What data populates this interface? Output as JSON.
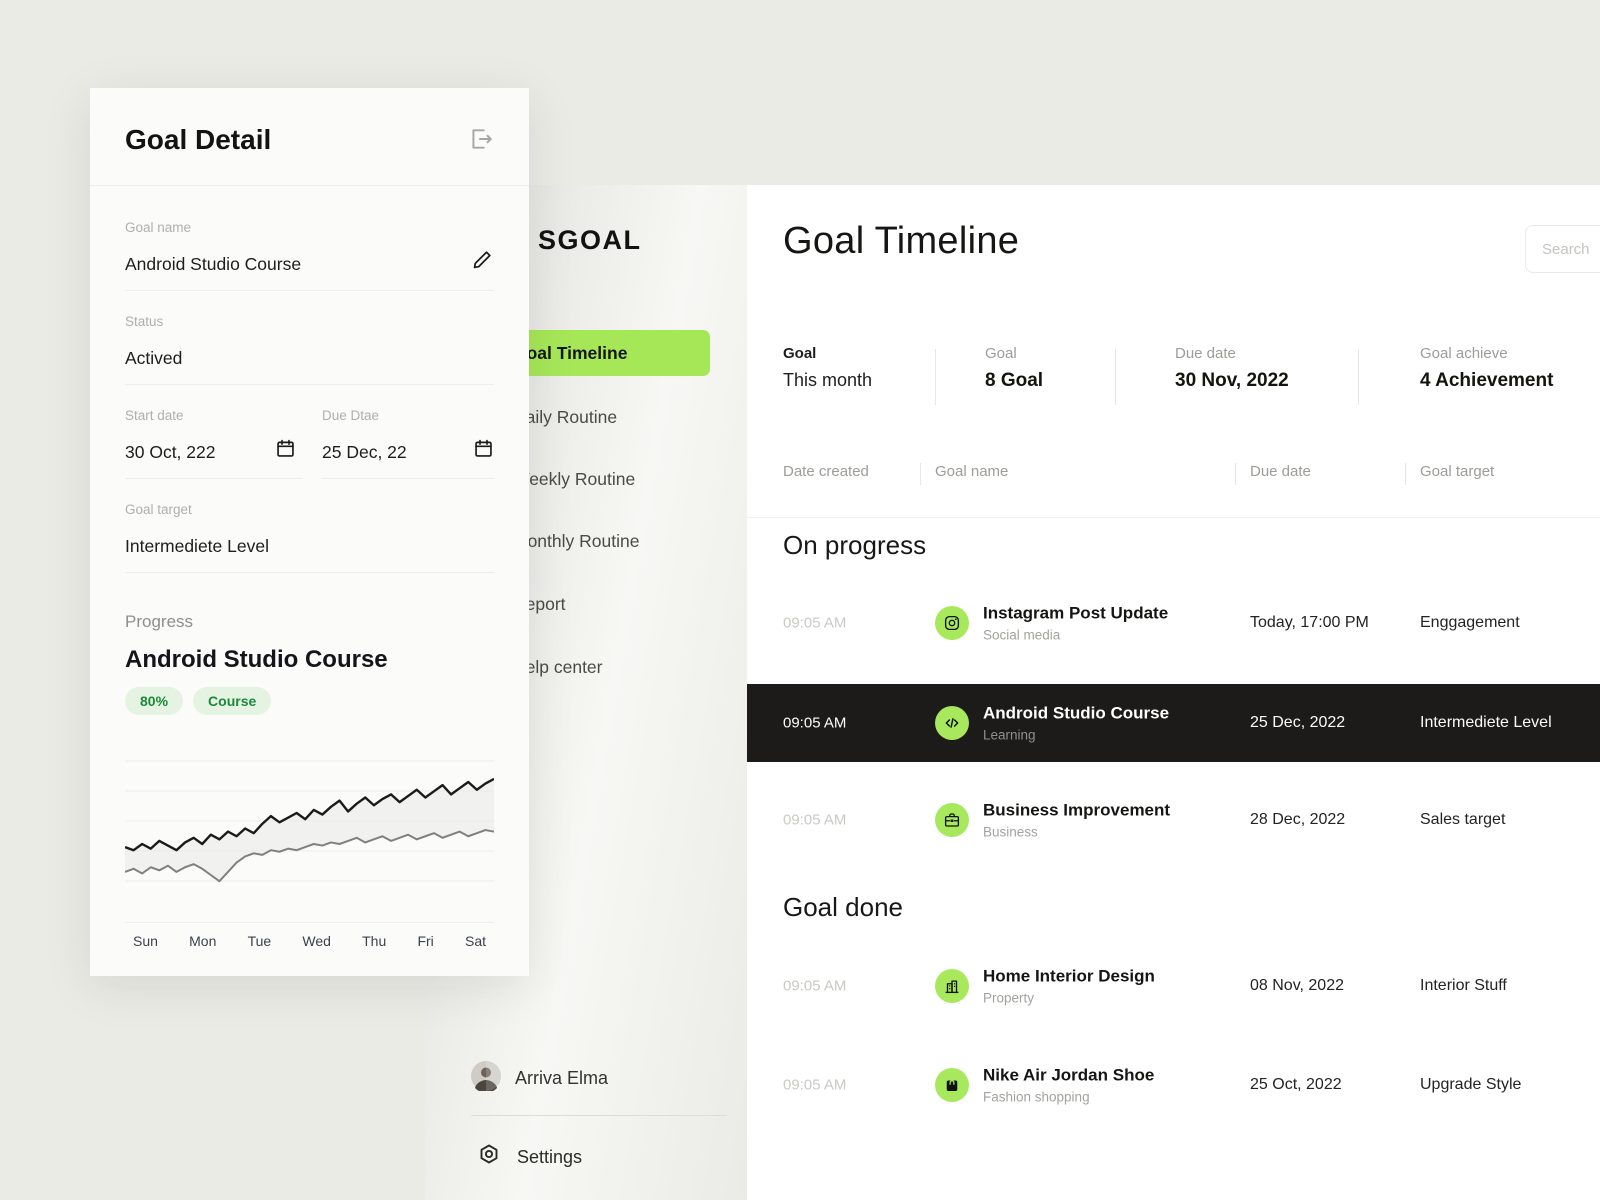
{
  "colors": {
    "accent_green": "#A6E758",
    "badge_bg": "#E4F3E2",
    "badge_text": "#1B8A38",
    "dark_row_bg": "#1C1B19",
    "page_bg": "#EAEBE5"
  },
  "goal_detail": {
    "title": "Goal Detail",
    "goal_name_label": "Goal name",
    "goal_name_value": "Android Studio Course",
    "status_label": "Status",
    "status_value": "Actived",
    "start_date_label": "Start date",
    "start_date_value": "30 Oct, 222",
    "due_date_label": "Due Dtae",
    "due_date_value": "25 Dec, 22",
    "goal_target_label": "Goal target",
    "goal_target_value": "Intermediete Level",
    "progress_label": "Progress",
    "progress_title": "Android Studio Course",
    "badge_percent": "80%",
    "badge_category": "Course"
  },
  "chart_data": {
    "type": "line",
    "x_labels": [
      "Sun",
      "Mon",
      "Tue",
      "Wed",
      "Thu",
      "Fri",
      "Sat"
    ],
    "series": [
      {
        "name": "progress-top",
        "color": "#1B1B19",
        "width": 2.4,
        "values": [
          38,
          36,
          40,
          37,
          42,
          39,
          36,
          41,
          44,
          40,
          46,
          43,
          48,
          45,
          50,
          47,
          53,
          58,
          54,
          57,
          60,
          56,
          62,
          59,
          64,
          68,
          61,
          66,
          70,
          65,
          69,
          72,
          67,
          71,
          75,
          70,
          74,
          78,
          72,
          76,
          80,
          75,
          79,
          82
        ]
      },
      {
        "name": "progress-baseline",
        "color": "#80807C",
        "width": 2,
        "values": [
          22,
          24,
          21,
          25,
          23,
          26,
          22,
          25,
          27,
          24,
          20,
          16,
          22,
          28,
          32,
          34,
          33,
          36,
          35,
          37,
          36,
          38,
          40,
          39,
          41,
          40,
          42,
          44,
          41,
          43,
          45,
          42,
          44,
          46,
          43,
          45,
          47,
          44,
          46,
          48,
          45,
          47,
          49,
          48
        ]
      }
    ],
    "ylim": [
      0,
      100
    ],
    "grid": true,
    "legend": "none",
    "fill_between": "#EBEBE8"
  },
  "sidebar": {
    "logo": "SGOAL",
    "items": [
      {
        "label": "Goal Timeline",
        "active": true
      },
      {
        "label": "Daily Routine",
        "active": false
      },
      {
        "label": "Weekly Routine",
        "active": false
      },
      {
        "label": "Monthly Routine",
        "active": false
      },
      {
        "label": "Report",
        "active": false
      },
      {
        "label": "Help center",
        "active": false
      }
    ],
    "user_name": "Arriva Elma",
    "settings_label": "Settings"
  },
  "main": {
    "title": "Goal Timeline",
    "search_placeholder": "Search",
    "stats": [
      {
        "label": "Goal",
        "value": "This month"
      },
      {
        "label": "Goal",
        "value": "8 Goal"
      },
      {
        "label": "Due date",
        "value": "30 Nov, 2022"
      },
      {
        "label": "Goal achieve",
        "value": "4 Achievement"
      }
    ],
    "table_headers": [
      "Date created",
      "Goal name",
      "Due date",
      "Goal target"
    ],
    "sections": [
      {
        "heading": "On progress",
        "rows": [
          {
            "time": "09:05 AM",
            "icon": "instagram-icon",
            "title": "Instagram Post Update",
            "subtitle": "Social media",
            "due": "Today, 17:00 PM",
            "target": "Enggagement"
          },
          {
            "time": "09:05 AM",
            "icon": "code-icon",
            "title": "Android Studio Course",
            "subtitle": "Learning",
            "due": "25 Dec, 2022",
            "target": "Intermediete Level"
          },
          {
            "time": "09:05 AM",
            "icon": "briefcase-icon",
            "title": "Business Improvement",
            "subtitle": "Business",
            "due": "28 Dec, 2022",
            "target": "Sales target"
          }
        ]
      },
      {
        "heading": "Goal done",
        "rows": [
          {
            "time": "09:05 AM",
            "icon": "building-icon",
            "title": "Home Interior Design",
            "subtitle": "Property",
            "due": "08 Nov, 2022",
            "target": "Interior Stuff"
          },
          {
            "time": "09:05 AM",
            "icon": "bag-icon",
            "title": "Nike Air Jordan Shoe",
            "subtitle": "Fashion shopping",
            "due": "25 Oct, 2022",
            "target": "Upgrade Style"
          }
        ]
      }
    ]
  }
}
